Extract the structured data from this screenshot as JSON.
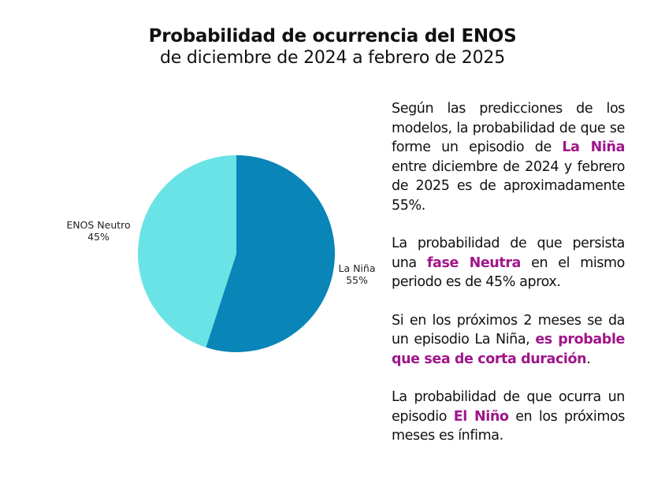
{
  "header": {
    "title": "Probabilidad de ocurrencia  del ENOS",
    "subtitle": "de diciembre de 2024 a febrero de 2025"
  },
  "colors": {
    "la_nina": "#0a85b8",
    "neutro": "#69e3e6",
    "highlight": "#a0168a"
  },
  "chart_data": {
    "type": "pie",
    "slices": [
      {
        "name": "La Niña",
        "value": 55,
        "label_text": "55%",
        "color": "#0a85b8"
      },
      {
        "name": "ENOS Neutro",
        "value": 45,
        "label_text": "45%",
        "color": "#69e3e6"
      }
    ],
    "start_angle": "12 o'clock",
    "direction": "clockwise"
  },
  "text": {
    "p1": {
      "a": "Según las predicciones de los modelos, la probabilidad de que se forme un episodio de ",
      "h": "La Niña",
      "b": " entre diciembre de 2024 y febrero de 2025 es de aproximadamente 55%."
    },
    "p2": {
      "a": "La probabilidad de que persista una ",
      "h": "fase Neutra",
      "b": " en el mismo periodo es de  45% aprox."
    },
    "p3": {
      "a": "Si en los próximos 2 meses se da un episodio La Niña, ",
      "h": "es probable que sea de corta duración",
      "b": "."
    },
    "p4": {
      "a": "La probabilidad de que  ocurra un episodio ",
      "h": "El Niño",
      "b": " en los próximos meses es ínfima."
    }
  }
}
